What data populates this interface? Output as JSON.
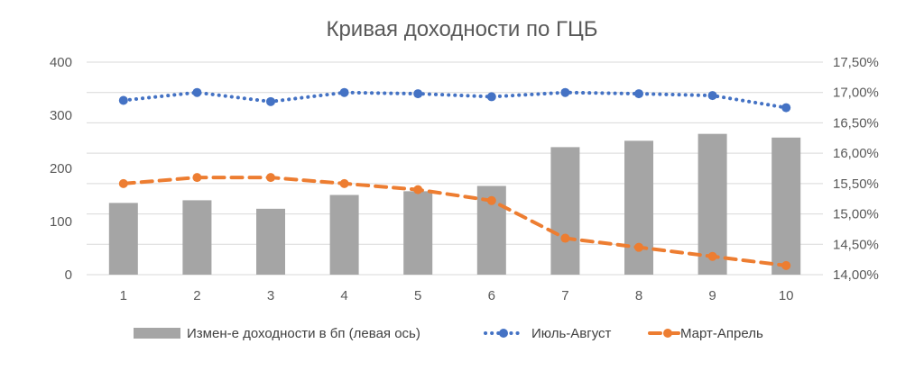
{
  "chart_data": {
    "type": "bar+line",
    "title": "Кривая доходности по ГЦБ",
    "categories": [
      "1",
      "2",
      "3",
      "4",
      "5",
      "6",
      "7",
      "8",
      "9",
      "10"
    ],
    "left_axis": {
      "min": 0,
      "max": 400,
      "ticks": [
        "0",
        "100",
        "200",
        "300",
        "400"
      ]
    },
    "right_axis": {
      "min": 14.0,
      "max": 17.5,
      "ticks": [
        "14,00%",
        "14,50%",
        "15,00%",
        "15,50%",
        "16,00%",
        "16,50%",
        "17,00%",
        "17,50%"
      ]
    },
    "grid": true,
    "legend_position": "bottom",
    "series": [
      {
        "name": "Измен-е доходности в бп (левая ось)",
        "kind": "bar",
        "axis": "left",
        "color": "#a5a5a5",
        "values": [
          135,
          140,
          124,
          150,
          157,
          167,
          240,
          252,
          265,
          258
        ]
      },
      {
        "name": "Июль-Август",
        "kind": "line",
        "style": "dotted",
        "axis": "right",
        "color": "#4472c4",
        "values": [
          16.87,
          17.0,
          16.85,
          17.0,
          16.98,
          16.93,
          17.0,
          16.98,
          16.95,
          16.75
        ]
      },
      {
        "name": "Март-Апрель",
        "kind": "line",
        "style": "dashed",
        "axis": "right",
        "color": "#ed7d31",
        "values": [
          15.5,
          15.6,
          15.6,
          15.5,
          15.4,
          15.22,
          14.6,
          14.45,
          14.3,
          14.15
        ]
      }
    ]
  }
}
